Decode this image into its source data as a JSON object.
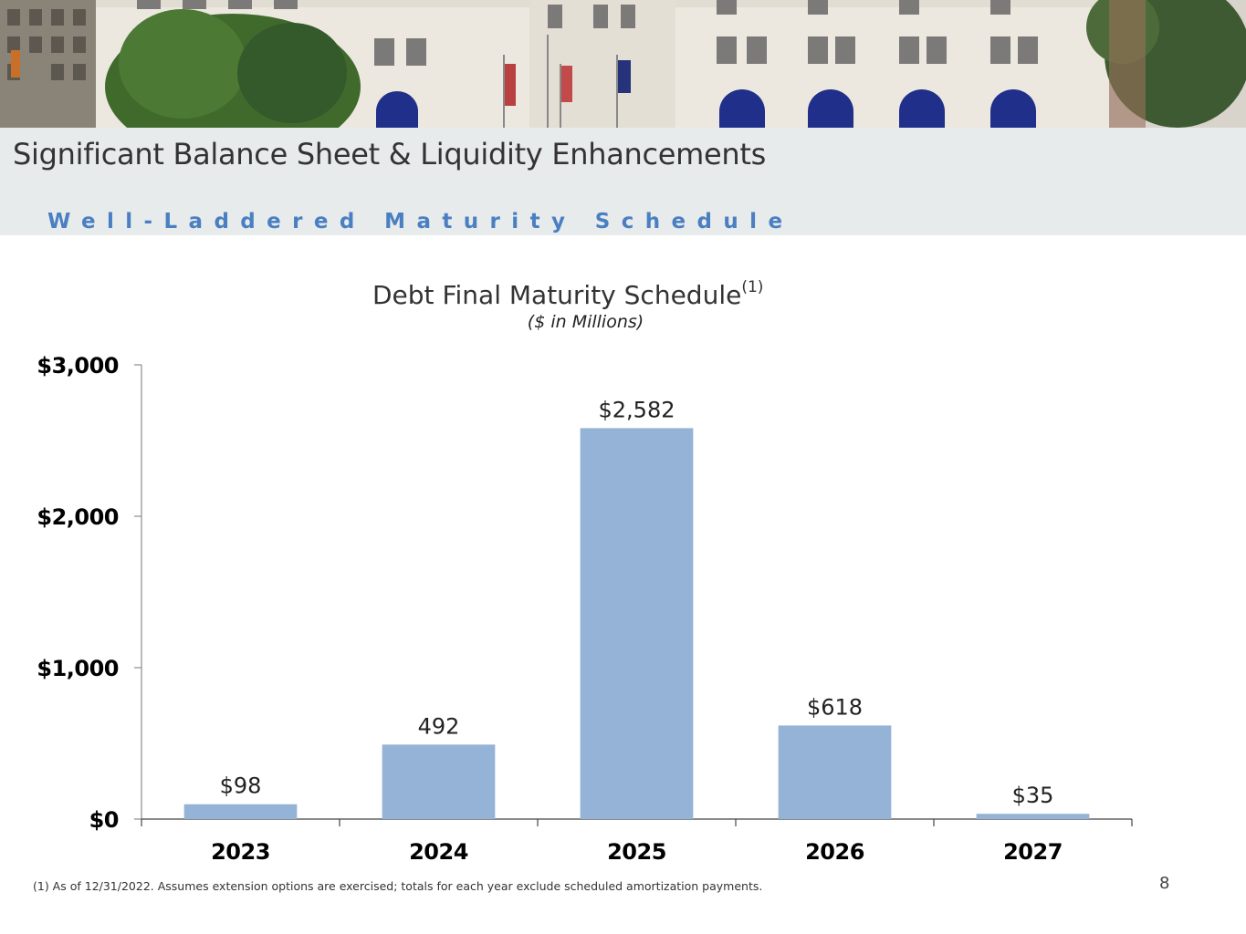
{
  "header": {
    "title": "Significant Balance Sheet & Liquidity Enhancements",
    "subtitle": "Well-Laddered Maturity Schedule"
  },
  "chart_data": {
    "type": "bar",
    "title": "Debt Final Maturity Schedule",
    "title_footnote_marker": "(1)",
    "subtitle": "($ in Millions)",
    "categories": [
      "2023",
      "2024",
      "2025",
      "2026",
      "2027"
    ],
    "values": [
      98,
      492,
      2582,
      618,
      35
    ],
    "data_labels": [
      "$98",
      "492",
      "$2,582",
      "$618",
      "$35"
    ],
    "y_ticks": [
      0,
      1000,
      2000,
      3000
    ],
    "y_tick_labels": [
      "$0",
      "$1,000",
      "$2,000",
      "$3,000"
    ],
    "ylim": [
      0,
      3000
    ],
    "xlabel": "",
    "ylabel": "",
    "grid": false,
    "legend": "none",
    "bar_color": "#95b3d7"
  },
  "footnote": "(1) As of 12/31/2022. Assumes extension options are exercised; totals for each year exclude scheduled amortization payments.",
  "page_number": "8"
}
